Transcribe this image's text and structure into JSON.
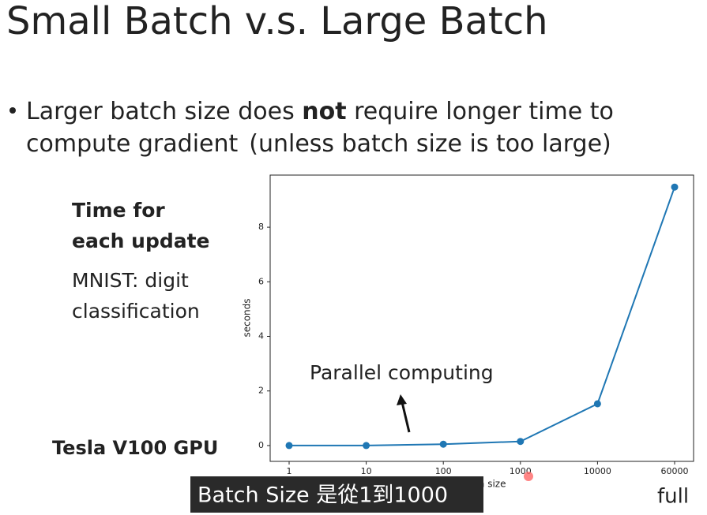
{
  "slide": {
    "title": "Small Batch v.s. Large Batch",
    "bullet": {
      "line1": [
        "Larger batch size does",
        "not",
        "require longer time to"
      ],
      "line2": [
        "compute gradient",
        "(unless batch size is too large)"
      ]
    },
    "side_heading": [
      "Time for",
      "each update"
    ],
    "side_note": [
      "MNIST: digit",
      "classification"
    ],
    "hardware": "Tesla V100 GPU",
    "caption": "Batch Size 是從1到1000",
    "corner_note": "full"
  },
  "chart_data": {
    "type": "line",
    "categories": [
      "1",
      "10",
      "100",
      "1000",
      "10000",
      "60000"
    ],
    "series": [
      {
        "name": "seconds",
        "color": "#1f77b4",
        "values": [
          0.0,
          0.0,
          0.05,
          0.15,
          1.53,
          9.47
        ]
      }
    ],
    "ylim": [
      -0.58,
      9.91
    ],
    "yticks": [
      0,
      2,
      4,
      6,
      8
    ],
    "xlabel": "batch size",
    "ylabel": "seconds",
    "annotation": "Parallel computing"
  }
}
